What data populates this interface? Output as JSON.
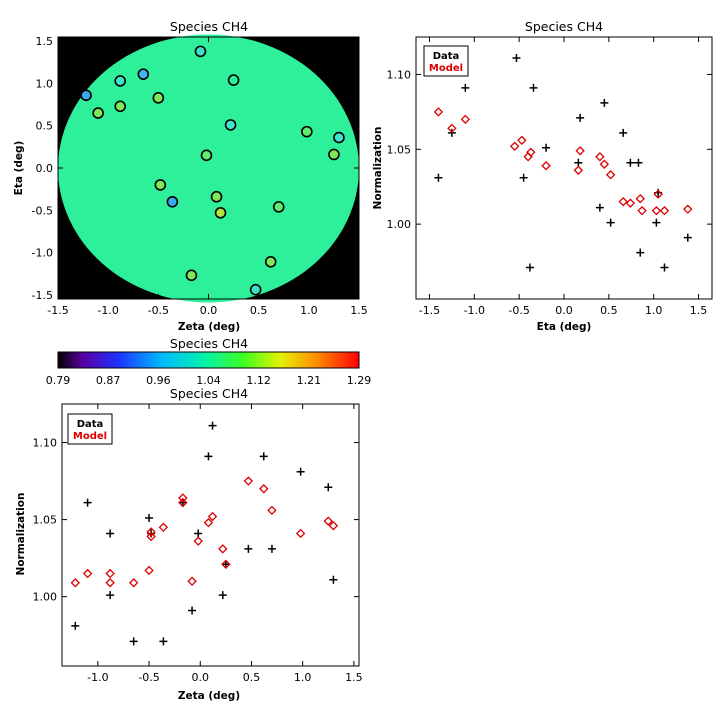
{
  "chart_data": [
    {
      "id": "map",
      "type": "scatter",
      "title": "Species CH4",
      "xlabel": "Zeta (deg)",
      "ylabel": "Eta (deg)",
      "xlim": [
        -1.5,
        1.5
      ],
      "ylim": [
        -1.55,
        1.55
      ],
      "xticks": [
        "-1.5",
        "-1.0",
        "-0.5",
        "0.0",
        "0.5",
        "1.0",
        "1.5"
      ],
      "yticks": [
        "-1.5",
        "-1.0",
        "-0.5",
        "0.0",
        "0.5",
        "1.0",
        "1.5"
      ],
      "background": "#000000",
      "field_color": "#2ef09a",
      "points": [
        {
          "x": -0.08,
          "y": 1.38,
          "color": "#3fe0c8"
        },
        {
          "x": -0.65,
          "y": 1.11,
          "color": "#39b7ee"
        },
        {
          "x": -0.88,
          "y": 1.03,
          "color": "#40e5d0"
        },
        {
          "x": 0.25,
          "y": 1.04,
          "color": "#2ef09a"
        },
        {
          "x": -1.22,
          "y": 0.86,
          "color": "#3aaaf0"
        },
        {
          "x": -0.5,
          "y": 0.83,
          "color": "#7fe85a"
        },
        {
          "x": -0.88,
          "y": 0.73,
          "color": "#7fe85a"
        },
        {
          "x": -1.1,
          "y": 0.65,
          "color": "#7fe85a"
        },
        {
          "x": 0.22,
          "y": 0.51,
          "color": "#40e5d0"
        },
        {
          "x": 0.98,
          "y": 0.43,
          "color": "#5fec70"
        },
        {
          "x": 1.3,
          "y": 0.36,
          "color": "#40e5d0"
        },
        {
          "x": 1.25,
          "y": 0.16,
          "color": "#7fe85a"
        },
        {
          "x": -0.02,
          "y": 0.15,
          "color": "#5fec70"
        },
        {
          "x": -0.48,
          "y": -0.2,
          "color": "#7fe85a"
        },
        {
          "x": -0.36,
          "y": -0.4,
          "color": "#3aaaf0"
        },
        {
          "x": 0.08,
          "y": -0.34,
          "color": "#7fe85a"
        },
        {
          "x": 0.12,
          "y": -0.53,
          "color": "#b5e640"
        },
        {
          "x": 0.7,
          "y": -0.46,
          "color": "#5fec70"
        },
        {
          "x": -0.17,
          "y": -1.27,
          "color": "#7fe85a"
        },
        {
          "x": 0.62,
          "y": -1.11,
          "color": "#7fe85a"
        },
        {
          "x": 0.47,
          "y": -1.44,
          "color": "#3fe0c8"
        }
      ]
    },
    {
      "id": "colorbar",
      "type": "heatmap",
      "title": "Species CH4",
      "tick_labels": [
        "0.79",
        "0.87",
        "0.96",
        "1.04",
        "1.12",
        "1.21",
        "1.29"
      ],
      "range": [
        0.79,
        1.29
      ]
    },
    {
      "id": "eta",
      "type": "scatter",
      "title": "Species CH4",
      "xlabel": "Eta (deg)",
      "ylabel": "Normalization",
      "xlim": [
        -1.65,
        1.65
      ],
      "ylim": [
        0.95,
        1.125
      ],
      "xticks": [
        "-1.5",
        "-1.0",
        "-0.5",
        "0.0",
        "0.5",
        "1.0",
        "1.5"
      ],
      "yticks": [
        "1.00",
        "1.05",
        "1.10"
      ],
      "legend": {
        "position": "top-left",
        "entries": [
          {
            "label": "Data",
            "color": "#000000"
          },
          {
            "label": "Model",
            "color": "#dd0000"
          }
        ]
      },
      "series": [
        {
          "name": "Data",
          "marker": "plus",
          "color": "#000000",
          "points": [
            [
              -1.4,
              1.031
            ],
            [
              -1.25,
              1.061
            ],
            [
              -1.1,
              1.091
            ],
            [
              -0.53,
              1.111
            ],
            [
              -0.45,
              1.031
            ],
            [
              -0.38,
              0.971
            ],
            [
              -0.34,
              1.091
            ],
            [
              -0.2,
              1.051
            ],
            [
              0.16,
              1.041
            ],
            [
              0.18,
              1.071
            ],
            [
              0.4,
              1.011
            ],
            [
              0.45,
              1.081
            ],
            [
              0.52,
              1.001
            ],
            [
              0.66,
              1.061
            ],
            [
              0.74,
              1.041
            ],
            [
              0.85,
              0.981
            ],
            [
              0.83,
              1.041
            ],
            [
              1.03,
              1.001
            ],
            [
              1.05,
              1.021
            ],
            [
              1.12,
              0.971
            ],
            [
              1.38,
              0.991
            ]
          ]
        },
        {
          "name": "Model",
          "marker": "diamond",
          "color": "#dd0000",
          "points": [
            [
              -1.4,
              1.075
            ],
            [
              -1.25,
              1.064
            ],
            [
              -1.1,
              1.07
            ],
            [
              -0.55,
              1.052
            ],
            [
              -0.47,
              1.056
            ],
            [
              -0.4,
              1.045
            ],
            [
              -0.37,
              1.048
            ],
            [
              -0.2,
              1.039
            ],
            [
              0.16,
              1.036
            ],
            [
              0.18,
              1.049
            ],
            [
              0.4,
              1.045
            ],
            [
              0.45,
              1.04
            ],
            [
              0.52,
              1.033
            ],
            [
              0.66,
              1.015
            ],
            [
              0.74,
              1.014
            ],
            [
              0.85,
              1.017
            ],
            [
              0.87,
              1.009
            ],
            [
              1.03,
              1.009
            ],
            [
              1.05,
              1.02
            ],
            [
              1.12,
              1.009
            ],
            [
              1.38,
              1.01
            ]
          ]
        }
      ]
    },
    {
      "id": "zeta",
      "type": "scatter",
      "title": "Species CH4",
      "xlabel": "Zeta (deg)",
      "ylabel": "Normalization",
      "xlim": [
        -1.35,
        1.55
      ],
      "ylim": [
        0.955,
        1.125
      ],
      "xticks": [
        "-1.0",
        "-0.5",
        "0.0",
        "0.5",
        "1.0",
        "1.5"
      ],
      "yticks": [
        "1.00",
        "1.05",
        "1.10"
      ],
      "legend": {
        "position": "top-left",
        "entries": [
          {
            "label": "Data",
            "color": "#000000"
          },
          {
            "label": "Model",
            "color": "#dd0000"
          }
        ]
      },
      "series": [
        {
          "name": "Data",
          "marker": "plus",
          "color": "#000000",
          "points": [
            [
              -1.22,
              0.981
            ],
            [
              -1.1,
              1.061
            ],
            [
              -0.88,
              1.041
            ],
            [
              -0.88,
              1.001
            ],
            [
              -0.65,
              0.971
            ],
            [
              -0.5,
              1.051
            ],
            [
              -0.48,
              1.041
            ],
            [
              -0.36,
              0.971
            ],
            [
              -0.17,
              1.061
            ],
            [
              -0.08,
              0.991
            ],
            [
              -0.02,
              1.041
            ],
            [
              0.08,
              1.091
            ],
            [
              0.12,
              1.111
            ],
            [
              0.22,
              1.001
            ],
            [
              0.25,
              1.021
            ],
            [
              0.47,
              1.031
            ],
            [
              0.62,
              1.091
            ],
            [
              0.7,
              1.031
            ],
            [
              0.98,
              1.081
            ],
            [
              1.25,
              1.071
            ],
            [
              1.3,
              1.011
            ]
          ]
        },
        {
          "name": "Model",
          "marker": "diamond",
          "color": "#dd0000",
          "points": [
            [
              -1.22,
              1.009
            ],
            [
              -1.1,
              1.015
            ],
            [
              -0.88,
              1.015
            ],
            [
              -0.88,
              1.009
            ],
            [
              -0.65,
              1.009
            ],
            [
              -0.5,
              1.017
            ],
            [
              -0.48,
              1.039
            ],
            [
              -0.48,
              1.042
            ],
            [
              -0.36,
              1.045
            ],
            [
              -0.17,
              1.064
            ],
            [
              -0.17,
              1.061
            ],
            [
              -0.08,
              1.01
            ],
            [
              -0.02,
              1.036
            ],
            [
              0.08,
              1.048
            ],
            [
              0.12,
              1.052
            ],
            [
              0.22,
              1.031
            ],
            [
              0.25,
              1.021
            ],
            [
              0.47,
              1.075
            ],
            [
              0.62,
              1.07
            ],
            [
              0.7,
              1.056
            ],
            [
              0.98,
              1.041
            ],
            [
              1.25,
              1.049
            ],
            [
              1.3,
              1.046
            ]
          ]
        }
      ]
    }
  ]
}
